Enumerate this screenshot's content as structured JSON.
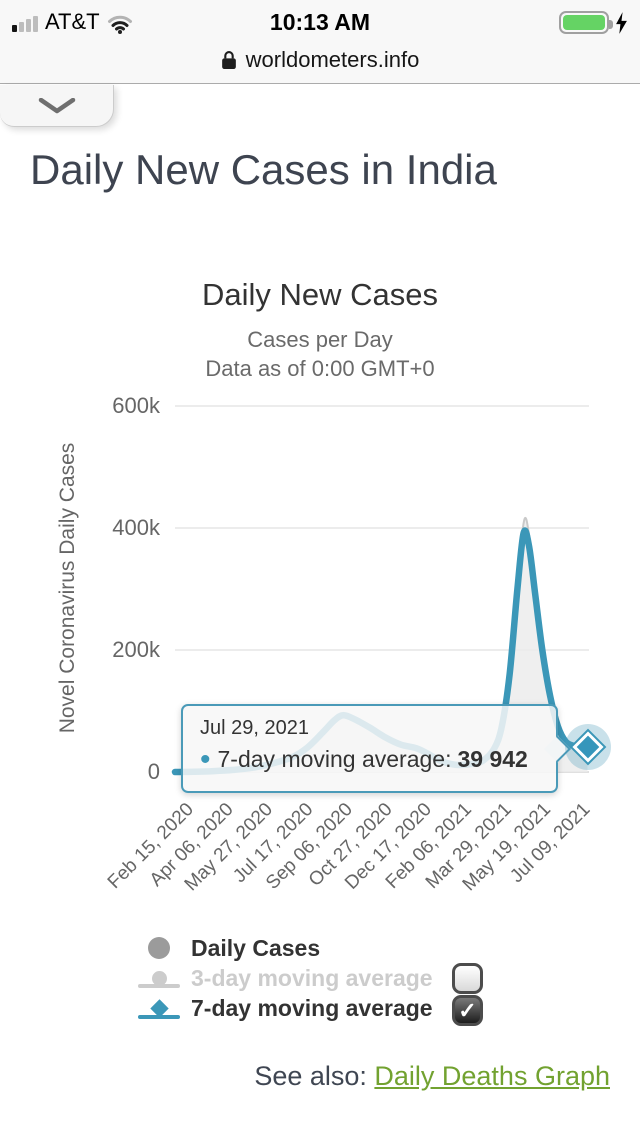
{
  "status_bar": {
    "carrier": "AT&T",
    "time": "10:13 AM",
    "signal_icon": "signal-bars-1-of-4",
    "wifi_icon": "wifi",
    "battery_icon": "battery-full",
    "charging_icon": "lightning-bolt"
  },
  "url_bar": {
    "lock_icon": "lock",
    "domain": "worldometers.info"
  },
  "tab_handle": {
    "icon": "chevron-down"
  },
  "page": {
    "title": "Daily New Cases in India"
  },
  "chart_data": {
    "type": "line",
    "title": "Daily New Cases",
    "subtitle_lines": [
      "Cases per Day",
      "Data as of 0:00 GMT+0"
    ],
    "ylabel": "Novel Coronavirus Daily Cases",
    "ylim": [
      0,
      650000
    ],
    "yticks": [
      {
        "label": "0",
        "value": 0
      },
      {
        "label": "200k",
        "value": 200000
      },
      {
        "label": "400k",
        "value": 400000
      },
      {
        "label": "600k",
        "value": 600000
      }
    ],
    "grid": "horizontal",
    "x_unit": "days since Feb 15, 2020",
    "xlim": [
      0,
      532
    ],
    "xticks": [
      {
        "label": "Feb 15, 2020",
        "day": 0
      },
      {
        "label": "Apr 06, 2020",
        "day": 51
      },
      {
        "label": "May 27, 2020",
        "day": 102
      },
      {
        "label": "Jul 17, 2020",
        "day": 153
      },
      {
        "label": "Sep 06, 2020",
        "day": 204
      },
      {
        "label": "Oct 27, 2020",
        "day": 255
      },
      {
        "label": "Dec 17, 2020",
        "day": 306
      },
      {
        "label": "Feb 06, 2021",
        "day": 357
      },
      {
        "label": "Mar 29, 2021",
        "day": 408
      },
      {
        "label": "May 19, 2021",
        "day": 459
      },
      {
        "label": "Jul 09, 2021",
        "day": 510
      }
    ],
    "series": [
      {
        "name": "Daily Cases",
        "color": "#c9c9c9",
        "fill": "#ececec",
        "render": "area",
        "visible": true,
        "points": [
          [
            0,
            0
          ],
          [
            25,
            500
          ],
          [
            50,
            1700
          ],
          [
            75,
            3800
          ],
          [
            100,
            7500
          ],
          [
            125,
            15000
          ],
          [
            150,
            25000
          ],
          [
            170,
            42000
          ],
          [
            190,
            68000
          ],
          [
            205,
            88000
          ],
          [
            216,
            97000
          ],
          [
            230,
            89000
          ],
          [
            250,
            75000
          ],
          [
            270,
            58000
          ],
          [
            290,
            46000
          ],
          [
            310,
            40000
          ],
          [
            325,
            31000
          ],
          [
            340,
            20000
          ],
          [
            355,
            13500
          ],
          [
            365,
            11800
          ],
          [
            380,
            13500
          ],
          [
            395,
            19000
          ],
          [
            410,
            40000
          ],
          [
            420,
            80000
          ],
          [
            430,
            170000
          ],
          [
            440,
            315000
          ],
          [
            449,
            414000
          ],
          [
            456,
            380000
          ],
          [
            464,
            300000
          ],
          [
            473,
            205000
          ],
          [
            483,
            128000
          ],
          [
            493,
            77000
          ],
          [
            503,
            51000
          ],
          [
            513,
            44000
          ],
          [
            521,
            41500
          ],
          [
            530,
            41000
          ]
        ]
      },
      {
        "name": "3-day moving average",
        "color": "#cccccc",
        "render": "none",
        "visible": false,
        "points": []
      },
      {
        "name": "7-day moving average",
        "color": "#3b97b8",
        "render": "line",
        "visible": true,
        "points": [
          [
            0,
            0
          ],
          [
            25,
            400
          ],
          [
            50,
            1500
          ],
          [
            75,
            3500
          ],
          [
            100,
            7000
          ],
          [
            125,
            14000
          ],
          [
            150,
            24000
          ],
          [
            170,
            40000
          ],
          [
            190,
            65000
          ],
          [
            205,
            85000
          ],
          [
            216,
            93000
          ],
          [
            230,
            87000
          ],
          [
            250,
            73000
          ],
          [
            270,
            57000
          ],
          [
            290,
            45000
          ],
          [
            310,
            39000
          ],
          [
            325,
            30000
          ],
          [
            340,
            19000
          ],
          [
            355,
            13000
          ],
          [
            365,
            11500
          ],
          [
            380,
            13000
          ],
          [
            395,
            18000
          ],
          [
            410,
            38000
          ],
          [
            420,
            75000
          ],
          [
            430,
            160000
          ],
          [
            440,
            300000
          ],
          [
            448,
            392000
          ],
          [
            455,
            370000
          ],
          [
            463,
            290000
          ],
          [
            472,
            200000
          ],
          [
            482,
            125000
          ],
          [
            492,
            75000
          ],
          [
            502,
            50000
          ],
          [
            512,
            43000
          ],
          [
            520,
            41000
          ],
          [
            530,
            39942
          ]
        ]
      }
    ],
    "tooltip": {
      "date": "Jul 29, 2021",
      "series_label": "7-day moving average:",
      "value": "39 942",
      "day": 530
    },
    "marker": {
      "day": 530,
      "value": 39942,
      "shape": "diamond"
    },
    "legend_position": "bottom-left"
  },
  "legend": {
    "check_glyph": "✓",
    "items": [
      {
        "label": "Daily Cases",
        "marker": "circle",
        "color": "#9b9b9b",
        "enabled": true,
        "checkbox": null
      },
      {
        "label": "3-day moving average",
        "marker": "line-circle",
        "color": "#cccccc",
        "enabled": false,
        "checkbox": "unchecked"
      },
      {
        "label": "7-day moving average",
        "marker": "line-diamond",
        "color": "#3b97b8",
        "enabled": true,
        "checkbox": "checked"
      }
    ]
  },
  "footer": {
    "see_also_label": "See also: ",
    "link_text": "Daily Deaths Graph"
  },
  "colors": {
    "accent_blue": "#3b97b8",
    "tooltip_border": "#4a9ab8",
    "link_green": "#72a230",
    "title_dark": "#3e4450",
    "battery_green": "#65d364",
    "grid_line": "#e6e6e6"
  }
}
